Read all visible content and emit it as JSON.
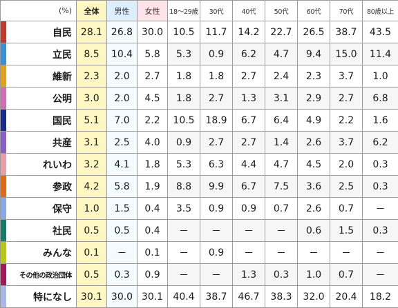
{
  "header": {
    "unit": "(%)",
    "columns": [
      "全体",
      "男性",
      "女性",
      "18～29歳",
      "30代",
      "40代",
      "50代",
      "60代",
      "70代",
      "80歳以上"
    ]
  },
  "rows": [
    {
      "party": "自民",
      "color": "#c0392b",
      "values": [
        "28.1",
        "26.8",
        "30.0",
        "10.5",
        "11.7",
        "14.2",
        "22.7",
        "26.5",
        "38.7",
        "43.5"
      ]
    },
    {
      "party": "立民",
      "color": "#3a8fd8",
      "values": [
        "8.5",
        "10.4",
        "5.8",
        "5.3",
        "0.9",
        "6.2",
        "4.7",
        "9.4",
        "15.0",
        "11.4"
      ]
    },
    {
      "party": "維新",
      "color": "#e0a020",
      "values": [
        "2.3",
        "2.0",
        "2.7",
        "1.8",
        "1.8",
        "2.7",
        "2.4",
        "2.3",
        "3.7",
        "1.0"
      ]
    },
    {
      "party": "公明",
      "color": "#d070b0",
      "values": [
        "3.0",
        "2.0",
        "4.5",
        "1.8",
        "2.7",
        "1.3",
        "3.1",
        "2.9",
        "2.7",
        "6.8"
      ]
    },
    {
      "party": "国民",
      "color": "#1a2a8a",
      "values": [
        "5.1",
        "7.0",
        "2.2",
        "10.5",
        "18.9",
        "6.7",
        "6.4",
        "4.9",
        "2.2",
        "1.6"
      ]
    },
    {
      "party": "共産",
      "color": "#8a60c8",
      "values": [
        "3.1",
        "2.5",
        "4.0",
        "0.9",
        "2.7",
        "2.7",
        "1.4",
        "2.6",
        "3.7",
        "6.2"
      ]
    },
    {
      "party": "れいわ",
      "color": "#e8a0a8",
      "values": [
        "3.2",
        "4.1",
        "1.8",
        "5.3",
        "6.3",
        "4.4",
        "4.7",
        "4.5",
        "2.0",
        "0.3"
      ]
    },
    {
      "party": "参政",
      "color": "#e06a1a",
      "values": [
        "4.2",
        "5.8",
        "1.9",
        "8.8",
        "9.9",
        "6.7",
        "7.5",
        "3.6",
        "2.5",
        "0.3"
      ]
    },
    {
      "party": "保守",
      "color": "#8aa8e8",
      "values": [
        "1.0",
        "1.5",
        "0.4",
        "3.5",
        "0.9",
        "0.9",
        "0.7",
        "2.6",
        "0.7",
        "－"
      ]
    },
    {
      "party": "社民",
      "color": "#1a7a6a",
      "values": [
        "0.5",
        "0.5",
        "0.4",
        "－",
        "－",
        "－",
        "－",
        "0.6",
        "1.5",
        "0.3"
      ]
    },
    {
      "party": "みんな",
      "color": "#b8c81a",
      "values": [
        "0.1",
        "－",
        "0.1",
        "－",
        "0.9",
        "－",
        "－",
        "－",
        "－",
        "－"
      ]
    },
    {
      "party": "その他の政治団体",
      "color": "#a01a5a",
      "values": [
        "0.5",
        "0.3",
        "0.9",
        "－",
        "－",
        "1.3",
        "0.3",
        "1.0",
        "0.7",
        "－"
      ]
    },
    {
      "party": "特になし",
      "color": "#a8b8e8",
      "values": [
        "30.1",
        "30.0",
        "30.1",
        "40.4",
        "38.7",
        "46.7",
        "38.3",
        "32.0",
        "20.4",
        "18.2"
      ]
    }
  ]
}
